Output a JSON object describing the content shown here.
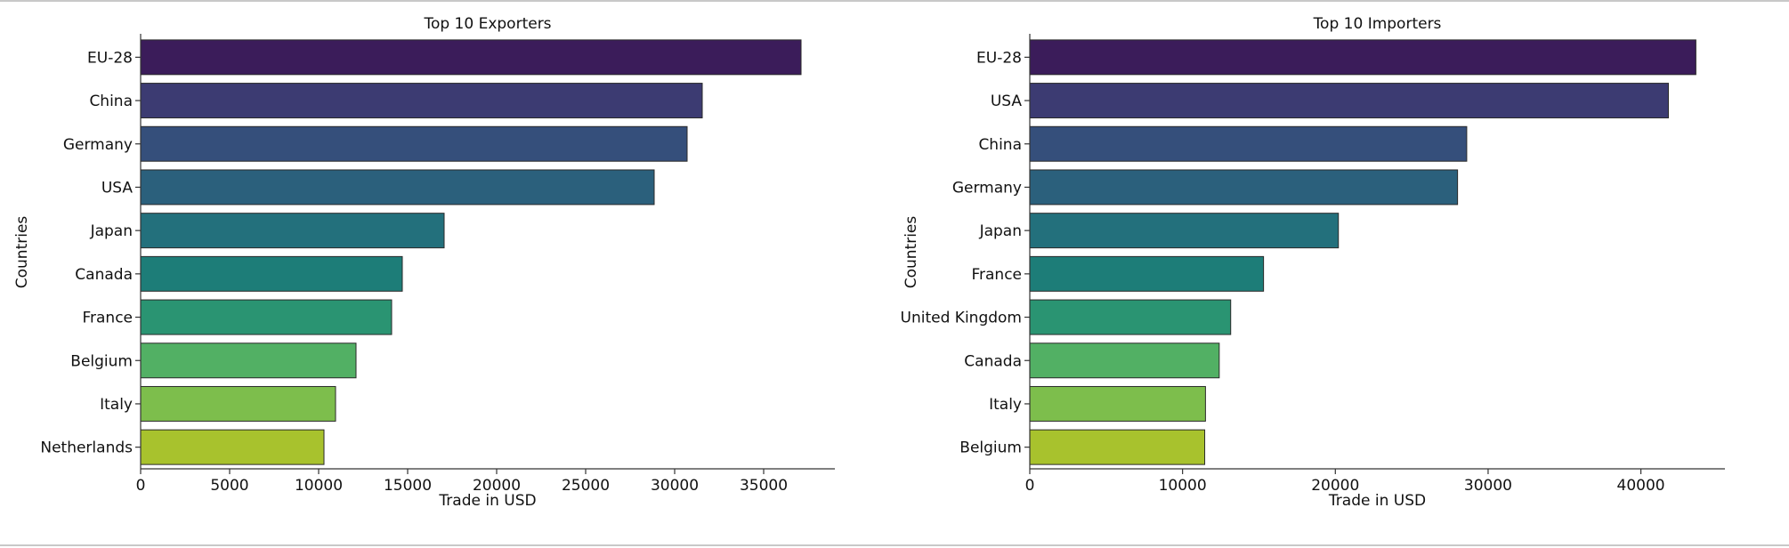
{
  "chart_data": [
    {
      "type": "bar",
      "orientation": "horizontal",
      "title": "Top 10 Exporters",
      "xlabel": "Trade in USD",
      "ylabel": "Countries",
      "categories": [
        "EU-28",
        "China",
        "Germany",
        "USA",
        "Japan",
        "Canada",
        "France",
        "Belgium",
        "Italy",
        "Netherlands"
      ],
      "values": [
        37100,
        31550,
        30700,
        28850,
        17050,
        14700,
        14100,
        12100,
        10950,
        10300
      ],
      "xlim": [
        0,
        39000
      ],
      "xticks": [
        0,
        5000,
        10000,
        15000,
        20000,
        25000,
        30000,
        35000
      ],
      "colors": [
        "#3b1c5a",
        "#3c3b72",
        "#354f7b",
        "#2b607c",
        "#23707c",
        "#1d7d78",
        "#2a9472",
        "#52b064",
        "#7dbe4c",
        "#a8c22d"
      ],
      "grid": false
    },
    {
      "type": "bar",
      "orientation": "horizontal",
      "title": "Top 10 Importers",
      "xlabel": "Trade in USD",
      "ylabel": "Countries",
      "categories": [
        "EU-28",
        "USA",
        "China",
        "Germany",
        "Japan",
        "France",
        "United Kingdom",
        "Canada",
        "Italy",
        "Belgium"
      ],
      "values": [
        43600,
        41800,
        28600,
        28000,
        20200,
        15300,
        13150,
        12400,
        11500,
        11450
      ],
      "xlim": [
        0,
        45500
      ],
      "xticks": [
        0,
        10000,
        20000,
        30000,
        40000
      ],
      "colors": [
        "#3b1c5a",
        "#3c3b72",
        "#354f7b",
        "#2b607c",
        "#23707c",
        "#1d7d78",
        "#2a9472",
        "#52b064",
        "#7dbe4c",
        "#a8c22d"
      ],
      "grid": false
    }
  ]
}
